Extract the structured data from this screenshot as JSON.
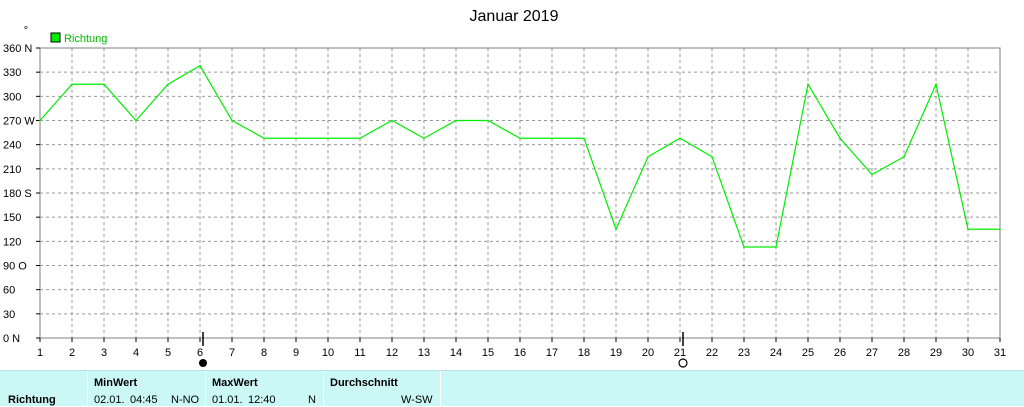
{
  "chart_data": {
    "type": "line",
    "title": "Januar 2019",
    "ylabel": "°",
    "legend": "top-left",
    "grid": true,
    "x": [
      1,
      2,
      3,
      4,
      5,
      6,
      7,
      8,
      9,
      10,
      11,
      12,
      13,
      14,
      15,
      16,
      17,
      18,
      19,
      20,
      21,
      22,
      23,
      24,
      25,
      26,
      27,
      28,
      29,
      30,
      31
    ],
    "xlim": [
      1,
      31
    ],
    "ylim": [
      0,
      360
    ],
    "y_ticks": [
      {
        "value": 0,
        "label": "0 N"
      },
      {
        "value": 30,
        "label": "30"
      },
      {
        "value": 60,
        "label": "60"
      },
      {
        "value": 90,
        "label": "90 O"
      },
      {
        "value": 120,
        "label": "120"
      },
      {
        "value": 150,
        "label": "150"
      },
      {
        "value": 180,
        "label": "180 S"
      },
      {
        "value": 210,
        "label": "210"
      },
      {
        "value": 240,
        "label": "240"
      },
      {
        "value": 270,
        "label": "270 W"
      },
      {
        "value": 300,
        "label": "300"
      },
      {
        "value": 330,
        "label": "330"
      },
      {
        "value": 360,
        "label": "360 N"
      }
    ],
    "series": [
      {
        "name": "Richtung",
        "color": "#00ee00",
        "values": [
          270,
          315,
          315,
          270,
          315,
          338,
          270,
          248,
          248,
          248,
          248,
          270,
          248,
          270,
          270,
          248,
          248,
          248,
          135,
          225,
          248,
          225,
          113,
          113,
          315,
          248,
          203,
          225,
          315,
          135,
          135
        ]
      }
    ],
    "moon_phases": [
      {
        "day": 6,
        "phase": "new-moon-icon"
      },
      {
        "day": 21,
        "phase": "full-moon-icon"
      }
    ]
  },
  "stats": {
    "row_label": "Richtung",
    "min": {
      "header": "MinWert",
      "date": "02.01.",
      "time": "04:45",
      "value": "N-NO"
    },
    "max": {
      "header": "MaxWert",
      "date": "01.01.",
      "time": "12:40",
      "value": "N"
    },
    "avg": {
      "header": "Durchschnitt",
      "value": "W-SW"
    }
  },
  "colors": {
    "line": "#00ee00",
    "grid": "#999999",
    "stats_bg": "#ccf7f7"
  }
}
